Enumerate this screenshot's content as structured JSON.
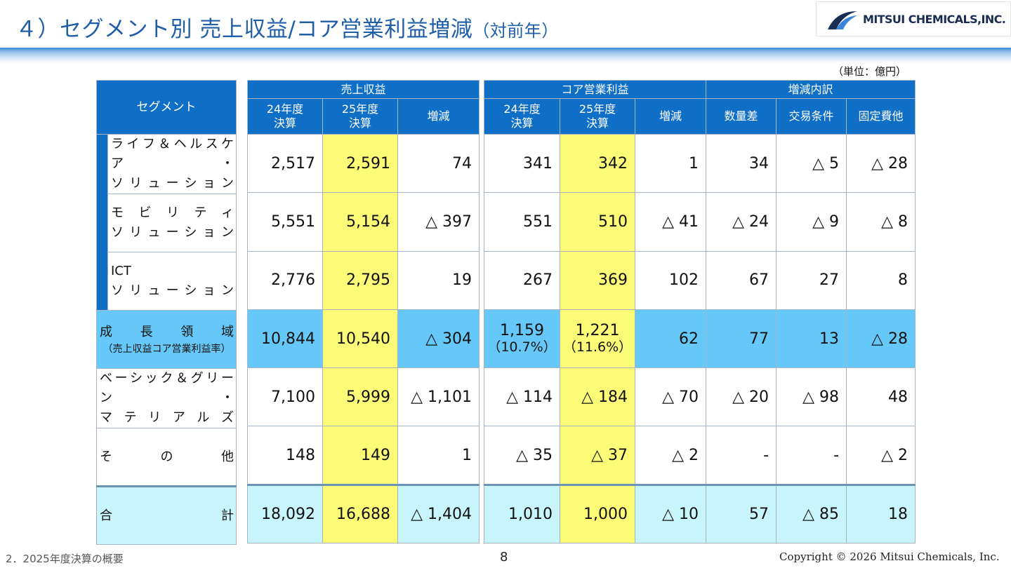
{
  "title": "４）セグメント別 売上収益/コア営業利益増減",
  "title_suffix": "（対前年）",
  "logo_text": "MITSUI CHEMICALS,INC.",
  "unit_note": "（単位：億円）",
  "headers": {
    "segment": "セグメント",
    "revenue": "売上収益",
    "core_op": "コア営業利益",
    "breakdown": "増減内訳",
    "fy24_a": "24年度",
    "fy24_b": "決算",
    "fy25_a": "25年度",
    "fy25_b": "決算",
    "change": "増減",
    "volume": "数量差",
    "terms": "交易条件",
    "fixed": "固定費他"
  },
  "rows": [
    {
      "seg1": "ライフ＆ヘルスケア・",
      "seg2": "ソリューション",
      "rev24": "2,517",
      "rev25": "2,591",
      "revchg": "74",
      "op24": "341",
      "op25": "342",
      "opchg": "1",
      "vol": "34",
      "terms": "△ 5",
      "fixed": "△ 28"
    },
    {
      "seg1": "モビリティ",
      "seg2": "ソリューション",
      "rev24": "5,551",
      "rev25": "5,154",
      "revchg": "△ 397",
      "op24": "551",
      "op25": "510",
      "opchg": "△ 41",
      "vol": "△ 24",
      "terms": "△ 9",
      "fixed": "△ 8"
    },
    {
      "seg1": "ICT",
      "seg2": "ソリューション",
      "rev24": "2,776",
      "rev25": "2,795",
      "revchg": "19",
      "op24": "267",
      "op25": "369",
      "opchg": "102",
      "vol": "67",
      "terms": "27",
      "fixed": "8"
    },
    {
      "seg1": "成長領域",
      "seg2": "（売上収益コア営業利益率）",
      "rev24": "10,844",
      "rev25": "10,540",
      "revchg": "△ 304",
      "op24": "1,159",
      "op24_pct": "（10.7%）",
      "op25": "1,221",
      "op25_pct": "（11.6%）",
      "opchg": "62",
      "vol": "77",
      "terms": "13",
      "fixed": "△ 28"
    },
    {
      "seg1": "ベーシック＆グリーン・",
      "seg2": "マテリアルズ",
      "rev24": "7,100",
      "rev25": "5,999",
      "revchg": "△ 1,101",
      "op24": "△ 114",
      "op25": "△ 184",
      "opchg": "△ 70",
      "vol": "△ 20",
      "terms": "△ 98",
      "fixed": "48"
    },
    {
      "seg1": "その他",
      "rev24": "148",
      "rev25": "149",
      "revchg": "1",
      "op24": "△ 35",
      "op25": "△ 37",
      "opchg": "△ 2",
      "vol": "-",
      "terms": "-",
      "fixed": "△ 2"
    },
    {
      "seg1": "合計",
      "rev24": "18,092",
      "rev25": "16,688",
      "revchg": "△ 1,404",
      "op24": "1,010",
      "op25": "1,000",
      "opchg": "△ 10",
      "vol": "57",
      "terms": "△ 85",
      "fixed": "18"
    }
  ],
  "footer": {
    "section": "2．2025年度決算の概要",
    "page": "8",
    "copyright": "Copyright © 2026 Mitsui Chemicals, Inc."
  },
  "colors": {
    "header": "#0f6fc6",
    "highlight_fy25": "#fbfb78",
    "growth_row": "#66c8f8",
    "total_row": "#c8f5fb",
    "title": "#1f5fa8"
  }
}
